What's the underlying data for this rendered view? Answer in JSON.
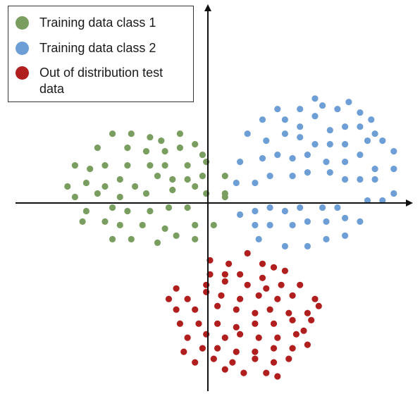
{
  "chart_data": {
    "type": "scatter",
    "title": "",
    "xlabel": "",
    "ylabel": "",
    "grid": false,
    "legend_position": "top-left",
    "axes": "centered-arrows",
    "xlim": [
      -27,
      29
    ],
    "ylim": [
      -27,
      29
    ],
    "series": [
      {
        "name": "Training data class 1",
        "color": "#7a9e5f",
        "x": [
          -12,
          -9.5,
          -7,
          -5.5,
          -3,
          -1,
          -14,
          -10,
          -7.5,
          -5,
          -3,
          0,
          -17,
          -15,
          -13,
          -10,
          -7,
          -5,
          -2,
          0.5,
          3,
          -18,
          -15.5,
          -13,
          -11,
          -9,
          -6,
          -4,
          -2,
          0,
          0.5,
          3,
          -17,
          -14,
          -11,
          -7.5,
          -4,
          -1,
          3,
          -15.5,
          -12,
          -10,
          -7,
          -4.5,
          -2,
          -16,
          -13,
          -11,
          -8,
          -5,
          -1,
          1.5,
          -12,
          -9.5,
          -6,
          -3.5,
          -1
        ],
        "y": [
          10,
          10,
          9.5,
          9,
          10,
          8.5,
          8,
          8,
          7.5,
          7.5,
          8,
          7,
          5.5,
          5,
          5.5,
          5.5,
          5.5,
          5.5,
          5.5,
          6,
          4,
          2.5,
          3,
          2.5,
          3.5,
          2.5,
          4,
          3.5,
          3.5,
          4,
          1.5,
          1.5,
          1,
          1.5,
          1,
          1.5,
          2,
          2.5,
          1,
          -1,
          -0.5,
          -1,
          -1,
          -0.5,
          -0.5,
          -2.5,
          -2.5,
          -3,
          -3,
          -3.5,
          -3,
          -3,
          -5,
          -5,
          -5.5,
          -4.5,
          -5
        ]
      },
      {
        "name": "Training data class 2",
        "color": "#6d9fd6",
        "x": [
          15,
          19.5,
          10,
          13,
          16,
          18,
          21,
          22.5,
          8,
          11,
          13,
          15,
          17,
          19,
          21,
          23,
          6,
          8.5,
          11,
          13,
          15,
          17,
          19,
          22,
          24,
          25.5,
          5,
          8,
          10,
          12,
          14,
          16.5,
          19,
          21,
          23,
          25.5,
          4.5,
          7,
          9,
          12,
          14,
          17,
          19,
          21,
          23,
          25.5,
          5,
          7,
          9,
          11,
          13,
          16,
          18,
          22,
          24,
          7,
          9,
          12,
          14,
          16.5,
          19,
          21,
          7.5,
          11,
          14,
          16.5,
          19
        ],
        "y": [
          15,
          14.5,
          13.5,
          13.5,
          14,
          13.5,
          13,
          12,
          12,
          12,
          11,
          12.5,
          10.5,
          11,
          11,
          10,
          10,
          9,
          10,
          9.5,
          8.5,
          8.5,
          8.5,
          9,
          9,
          7.5,
          6,
          6.5,
          7,
          6.5,
          7,
          6,
          6,
          7,
          5,
          5,
          3,
          3,
          4,
          4,
          4.5,
          4.5,
          3.5,
          3.5,
          3.5,
          1.5,
          -1.5,
          -1,
          -0.5,
          -1,
          -0.5,
          -0.5,
          -0.5,
          0.5,
          0.5,
          -3,
          -3,
          -3,
          -2.5,
          -2.5,
          -2,
          -2.5,
          -5,
          -6,
          -6,
          -5,
          -4.5
        ]
      },
      {
        "name": "Out of distribution test data",
        "color": "#b01e1e",
        "x": [
          6,
          1,
          3.5,
          8,
          9.5,
          1,
          3,
          5,
          8,
          11,
          -3.5,
          0.5,
          3,
          6,
          8.5,
          10.5,
          13,
          -4.5,
          -2,
          0.5,
          2.5,
          5,
          7.5,
          10,
          12,
          15,
          -3.5,
          -1,
          2,
          4.5,
          7,
          9,
          11.5,
          14,
          15.5,
          -3,
          -0.5,
          2,
          4.5,
          7,
          9.5,
          12,
          14.5,
          -2,
          0.5,
          3,
          5,
          7.5,
          10,
          12.5,
          13.5,
          -2.5,
          0,
          2,
          4.5,
          7,
          9.5,
          12,
          14,
          -1,
          1.5,
          4,
          7,
          9.5,
          11.5,
          8.5,
          3,
          5.5,
          10
        ],
        "y": [
          -7,
          -8,
          -8.5,
          -8.5,
          -9,
          -10,
          -10,
          -10,
          -10.5,
          -9.5,
          -12,
          -11.5,
          -11,
          -11.5,
          -12,
          -11.5,
          -11.5,
          -13.5,
          -13.5,
          -12.5,
          -13,
          -13.5,
          -13,
          -13.5,
          -13,
          -13.5,
          -15,
          -15,
          -14.5,
          -15,
          -15.5,
          -15,
          -15.5,
          -15.5,
          -14.5,
          -17,
          -17,
          -17,
          -17.5,
          -17,
          -17,
          -16.5,
          -16.5,
          -19,
          -18.5,
          -19,
          -18.5,
          -19,
          -19,
          -18.5,
          -18,
          -21,
          -20.5,
          -20.5,
          -21,
          -21,
          -20.5,
          -20.5,
          -20,
          -22.5,
          -22,
          -22.5,
          -22,
          -22.5,
          -22,
          -24,
          -23.5,
          -24,
          -24.5
        ]
      }
    ]
  }
}
